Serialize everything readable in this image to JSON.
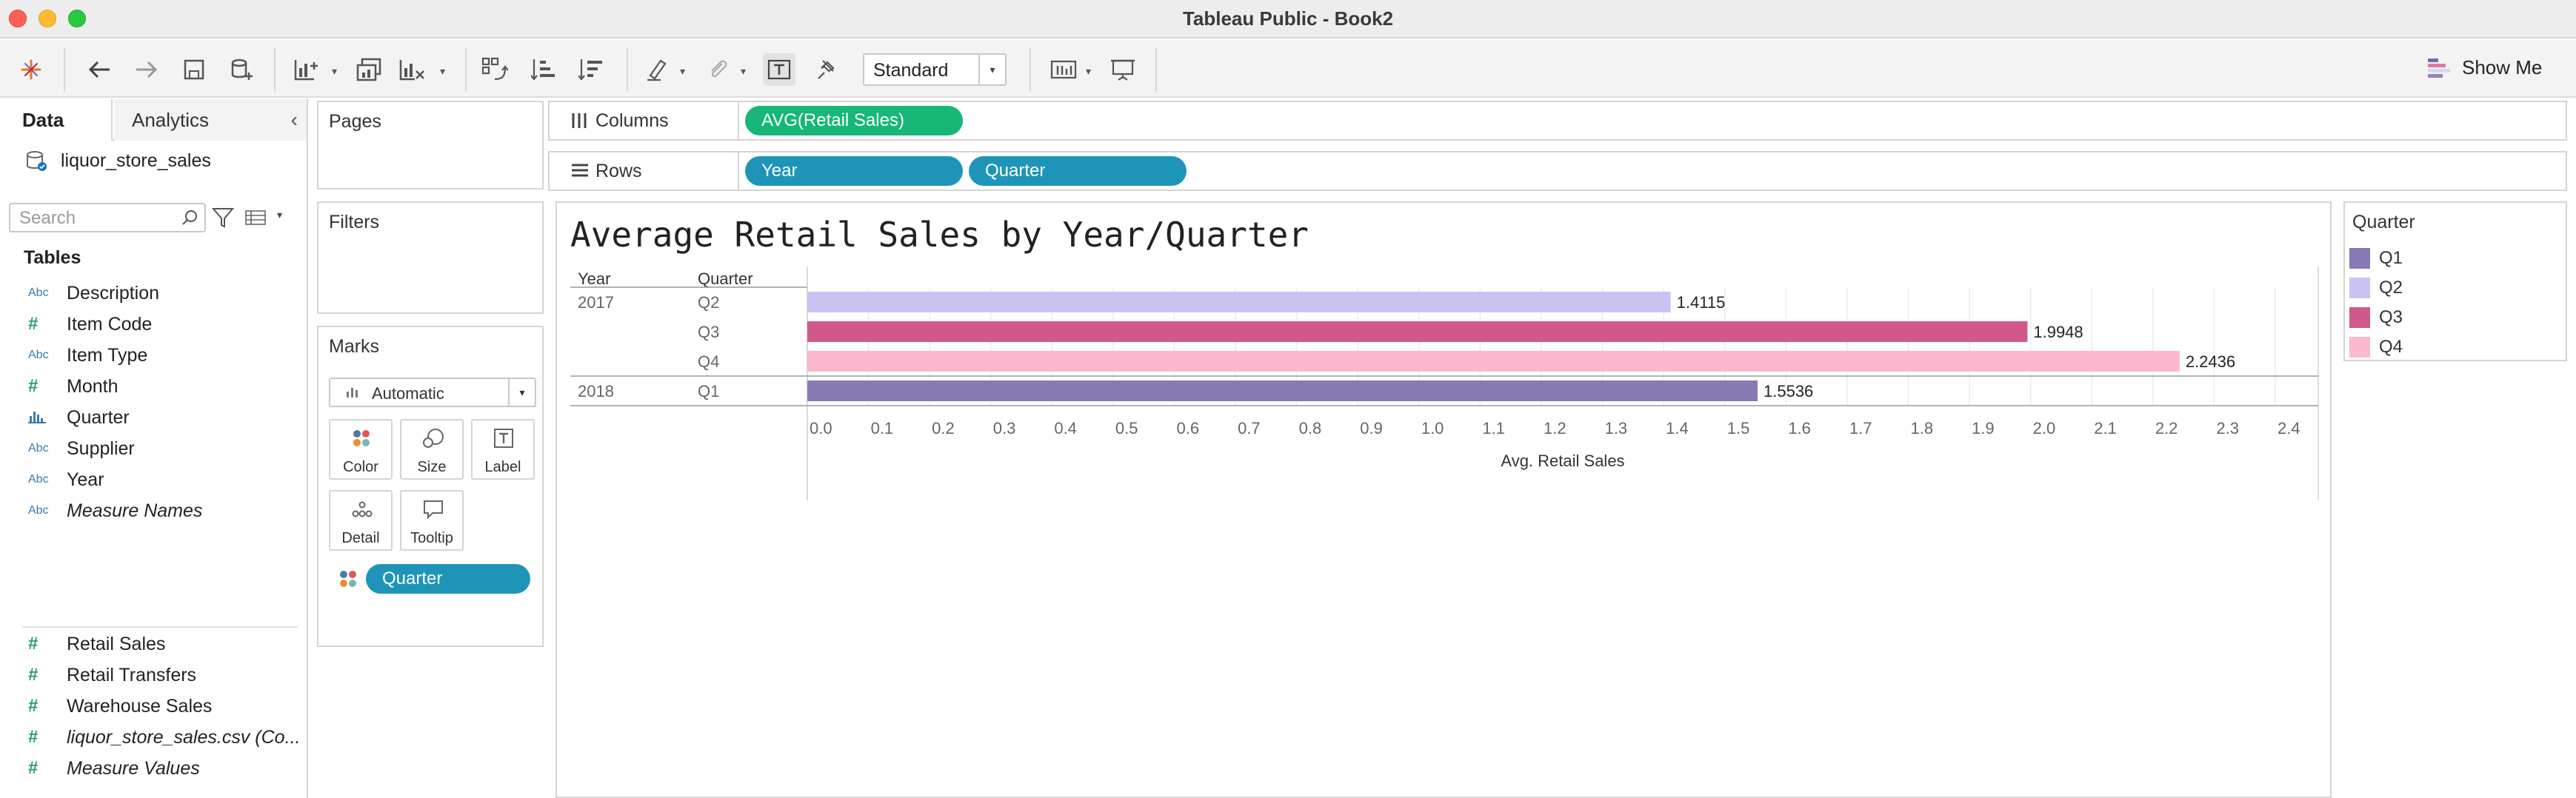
{
  "window": {
    "title": "Tableau Public - Book2"
  },
  "toolbar": {
    "fit_value": "Standard",
    "show_me_label": "Show Me"
  },
  "data_pane": {
    "tabs": [
      {
        "label": "Data"
      },
      {
        "label": "Analytics"
      }
    ],
    "datasource": "liquor_store_sales",
    "search_placeholder": "Search",
    "tables_heading": "Tables",
    "fields": [
      {
        "type": "Abc",
        "name": "Description"
      },
      {
        "type": "#",
        "name": "Item Code"
      },
      {
        "type": "Abc",
        "name": "Item Type"
      },
      {
        "type": "#",
        "name": "Month"
      },
      {
        "type": "bars",
        "name": "Quarter"
      },
      {
        "type": "Abc",
        "name": "Supplier"
      },
      {
        "type": "Abc",
        "name": "Year"
      },
      {
        "type": "Abc",
        "name": "Measure Names"
      },
      {
        "type": "#",
        "name": "Retail Sales"
      },
      {
        "type": "#",
        "name": "Retail Transfers"
      },
      {
        "type": "#",
        "name": "Warehouse Sales"
      },
      {
        "type": "#",
        "name": "liquor_store_sales.csv (Co..."
      },
      {
        "type": "#",
        "name": "Measure Values"
      }
    ]
  },
  "cards": {
    "pages": "Pages",
    "filters": "Filters",
    "marks": "Marks",
    "mark_type": "Automatic",
    "mark_buttons": [
      "Color",
      "Size",
      "Label",
      "Detail",
      "Tooltip"
    ],
    "color_pill": "Quarter"
  },
  "shelves": {
    "columns_label": "Columns",
    "rows_label": "Rows",
    "columns_pills": [
      "AVG(Retail Sales)"
    ],
    "rows_pills": [
      "Year",
      "Quarter"
    ]
  },
  "legend": {
    "title": "Quarter",
    "items": [
      {
        "label": "Q1",
        "color": "#8779b4"
      },
      {
        "label": "Q2",
        "color": "#c9c3f2"
      },
      {
        "label": "Q3",
        "color": "#d1598a"
      },
      {
        "label": "Q4",
        "color": "#fbb8ce"
      }
    ]
  },
  "chart_data": {
    "type": "bar",
    "orientation": "horizontal",
    "title": "Average Retail Sales by Year/Quarter",
    "row_headers": [
      "Year",
      "Quarter"
    ],
    "rows": [
      {
        "year": "2017",
        "quarter": "Q2",
        "value": 1.4115,
        "label": "1.4115",
        "color": "#c9c3f2"
      },
      {
        "year": "",
        "quarter": "Q3",
        "value": 1.9948,
        "label": "1.9948",
        "color": "#d1598a"
      },
      {
        "year": "",
        "quarter": "Q4",
        "value": 2.2436,
        "label": "2.2436",
        "color": "#fbb8ce"
      },
      {
        "year": "2018",
        "quarter": "Q1",
        "value": 1.5536,
        "label": "1.5536",
        "color": "#8779b4"
      }
    ],
    "xlabel": "Avg. Retail Sales",
    "xlim": [
      0,
      2.4
    ],
    "x_ticks": [
      "0.0",
      "0.1",
      "0.2",
      "0.3",
      "0.4",
      "0.5",
      "0.6",
      "0.7",
      "0.8",
      "0.9",
      "1.0",
      "1.1",
      "1.2",
      "1.3",
      "1.4",
      "1.5",
      "1.6",
      "1.7",
      "1.8",
      "1.9",
      "2.0",
      "2.1",
      "2.2",
      "2.3",
      "2.4"
    ],
    "grid": true
  }
}
